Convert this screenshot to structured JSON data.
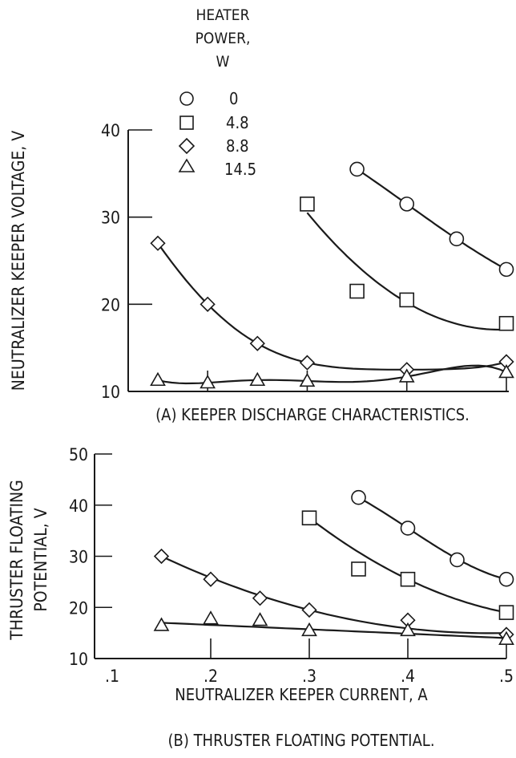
{
  "chart_data": [
    {
      "type": "scatter",
      "caption": "(A) KEEPER DISCHARGE CHARACTERISTICS.",
      "ylabel": "NEUTRALIZER KEEPER VOLTAGE, V",
      "xlim": [
        0.15,
        0.5
      ],
      "ylim": [
        10,
        40
      ],
      "yticks": [
        "10",
        "20",
        "30",
        "40"
      ],
      "legend": {
        "title": [
          "HEATER",
          "POWER,",
          "W"
        ],
        "entries": [
          "0",
          "4.8",
          "8.8",
          "14.5"
        ]
      },
      "series": [
        {
          "name": "0",
          "marker": "circle",
          "x": [
            0.35,
            0.4,
            0.45,
            0.5
          ],
          "y": [
            35.5,
            31.5,
            27.5,
            24
          ]
        },
        {
          "name": "4.8",
          "marker": "square",
          "x": [
            0.3,
            0.35,
            0.4,
            0.5
          ],
          "y": [
            31.5,
            21.5,
            20.5,
            17.8
          ]
        },
        {
          "name": "8.8",
          "marker": "diamond",
          "x": [
            0.15,
            0.2,
            0.25,
            0.3,
            0.4,
            0.5
          ],
          "y": [
            27,
            20,
            15.5,
            13.3,
            12.5,
            13.4
          ]
        },
        {
          "name": "14.5",
          "marker": "triangle",
          "x": [
            0.15,
            0.2,
            0.25,
            0.3,
            0.4,
            0.5
          ],
          "y": [
            11.3,
            11,
            11.3,
            11.2,
            11.7,
            12.2
          ]
        }
      ]
    },
    {
      "type": "scatter",
      "caption": "(B) THRUSTER FLOATING POTENTIAL.",
      "ylabel": [
        "THRUSTER FLOATING",
        "POTENTIAL, V"
      ],
      "xlabel": "NEUTRALIZER KEEPER CURRENT, A",
      "xlim": [
        0.1,
        0.5
      ],
      "ylim": [
        10,
        50
      ],
      "xticks": [
        ".1",
        ".2",
        ".3",
        ".4",
        ".5"
      ],
      "yticks": [
        "10",
        "20",
        "30",
        "40",
        "50"
      ],
      "series": [
        {
          "name": "0",
          "marker": "circle",
          "x": [
            0.35,
            0.4,
            0.45,
            0.5
          ],
          "y": [
            41.5,
            35.5,
            29.3,
            25.5
          ]
        },
        {
          "name": "4.8",
          "marker": "square",
          "x": [
            0.3,
            0.35,
            0.4,
            0.5
          ],
          "y": [
            37.5,
            27.5,
            25.5,
            19
          ]
        },
        {
          "name": "8.8",
          "marker": "diamond",
          "x": [
            0.15,
            0.2,
            0.25,
            0.3,
            0.4,
            0.5
          ],
          "y": [
            30,
            25.5,
            21.8,
            19.5,
            17.5,
            14.7
          ]
        },
        {
          "name": "14.5",
          "marker": "triangle",
          "x": [
            0.15,
            0.2,
            0.25,
            0.3,
            0.4,
            0.5
          ],
          "y": [
            16.5,
            17.8,
            17.5,
            15.5,
            15.5,
            13.8
          ]
        }
      ]
    }
  ]
}
